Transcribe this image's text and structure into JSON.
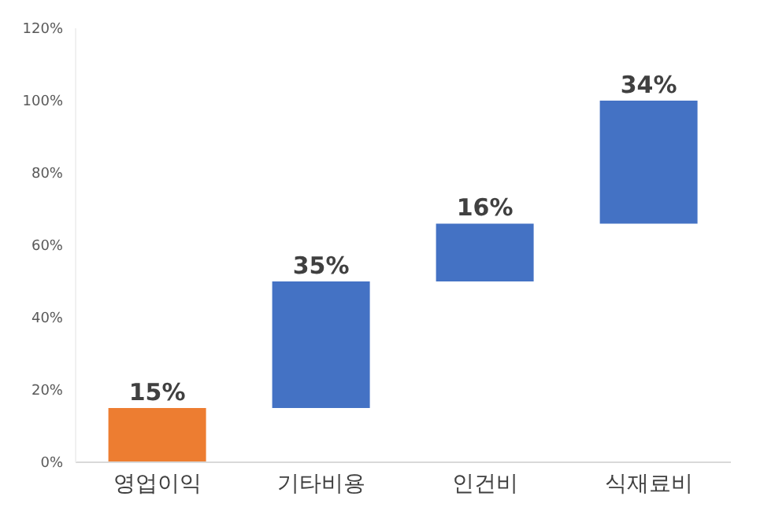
{
  "chart_data": {
    "type": "bar",
    "categories": [
      "영업이익",
      "기타비용",
      "인건비",
      "식재료비"
    ],
    "values": [
      15,
      35,
      16,
      34
    ],
    "base": [
      0,
      15,
      50,
      66
    ],
    "colors": [
      "#ed7d31",
      "#4472c4",
      "#4472c4",
      "#4472c4"
    ],
    "value_labels": [
      "15%",
      "35%",
      "16%",
      "34%"
    ],
    "ylim": [
      0,
      120
    ],
    "yticks": [
      {
        "value": 0,
        "label": "0%"
      },
      {
        "value": 20,
        "label": "20%"
      },
      {
        "value": 40,
        "label": "40%"
      },
      {
        "value": 60,
        "label": "60%"
      },
      {
        "value": 80,
        "label": "80%"
      },
      {
        "value": 100,
        "label": "100%"
      },
      {
        "value": 120,
        "label": "120%"
      }
    ],
    "grid": false,
    "legend": false
  }
}
